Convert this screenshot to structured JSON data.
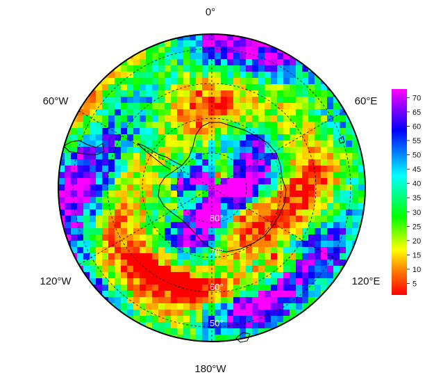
{
  "map": {
    "projection": "south polar stereographic",
    "longitude_labels": {
      "top": "0°",
      "upper_left": "60°W",
      "upper_right": "60°E",
      "lower_left": "120°W",
      "lower_right": "120°E",
      "bottom": "180°W"
    },
    "latitude_labels": [
      "80°",
      "70°",
      "60°",
      "50°"
    ],
    "colors": {
      "coastline": "#000000",
      "graticule": "#000000",
      "border": "#000000"
    }
  },
  "colorbar": {
    "tick_labels": [
      "70",
      "65",
      "60",
      "55",
      "50",
      "45",
      "40",
      "35",
      "30",
      "25",
      "20",
      "15",
      "10",
      "5"
    ],
    "range": [
      1,
      73
    ],
    "stops": [
      "#ff0000",
      "#ff8000",
      "#ffff00",
      "#00ff00",
      "#00ffff",
      "#0000ff",
      "#ff00ff"
    ]
  }
}
